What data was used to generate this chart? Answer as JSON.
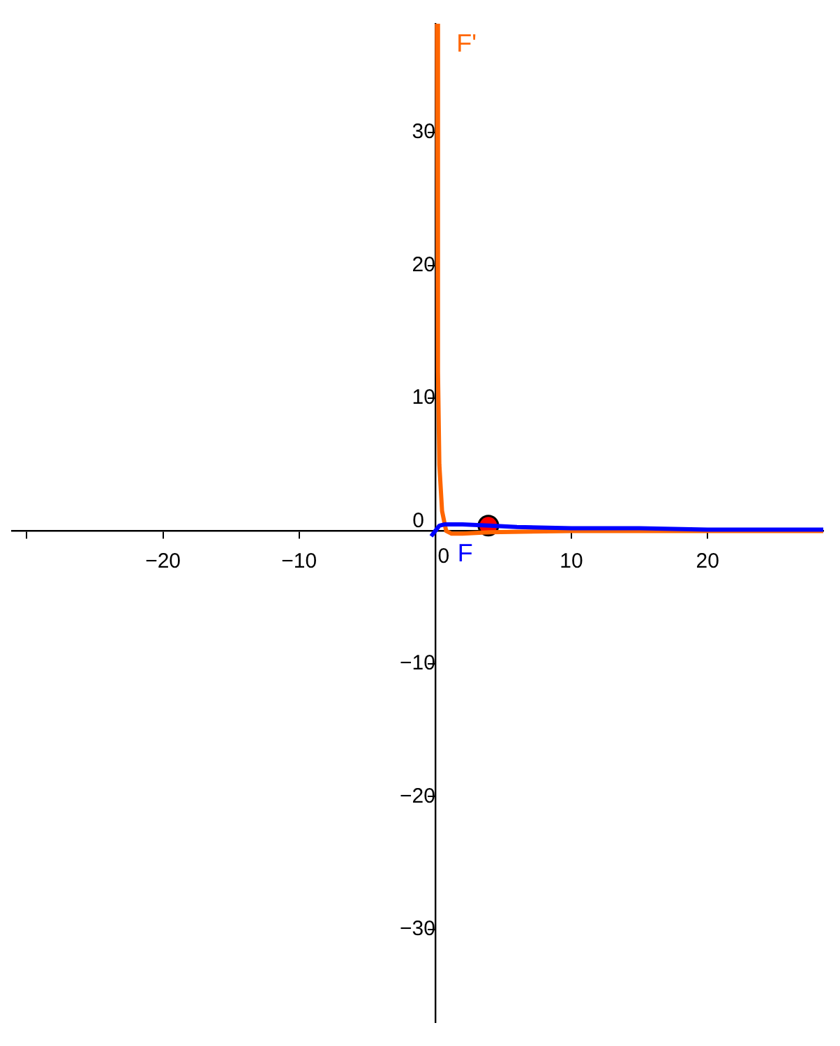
{
  "chart_data": {
    "type": "line",
    "xlim": [
      -31.1,
      28.5
    ],
    "ylim": [
      -37,
      38.2
    ],
    "xticks": [
      {
        "value": -30,
        "label": null
      },
      {
        "value": -20,
        "label": "−20"
      },
      {
        "value": -10,
        "label": "−10"
      },
      0,
      10,
      20
    ],
    "yticks": [
      {
        "value": -30,
        "label": "−30"
      },
      {
        "value": -20,
        "label": "−20"
      },
      {
        "value": -10,
        "label": "−10"
      },
      0,
      10,
      20,
      30
    ],
    "grid": false,
    "legend": false,
    "marker": "none",
    "line_style": "solid",
    "series": [
      {
        "name": "F",
        "color": "#0000ff",
        "x": [
          -0.3,
          0,
          0.3,
          0.7,
          1,
          2,
          4,
          6,
          10,
          15,
          20,
          28.5
        ],
        "values": [
          -0.4,
          0,
          0.4,
          0.5,
          0.5,
          0.5,
          0.4,
          0.3,
          0.2,
          0.2,
          0.1,
          0.1
        ]
      },
      {
        "name": "F'",
        "color": "#ff6600",
        "x": [
          0.12,
          0.2,
          0.3,
          0.5,
          0.8,
          1.2,
          2,
          4,
          10,
          28.5
        ],
        "values": [
          38.2,
          12,
          5,
          1.5,
          0,
          -0.2,
          -0.2,
          -0.1,
          0,
          0
        ]
      },
      {
        "type": "scatter",
        "marker": "circle",
        "color": "#ff0000",
        "x": [
          3.9
        ],
        "values": [
          0.4
        ]
      }
    ]
  }
}
